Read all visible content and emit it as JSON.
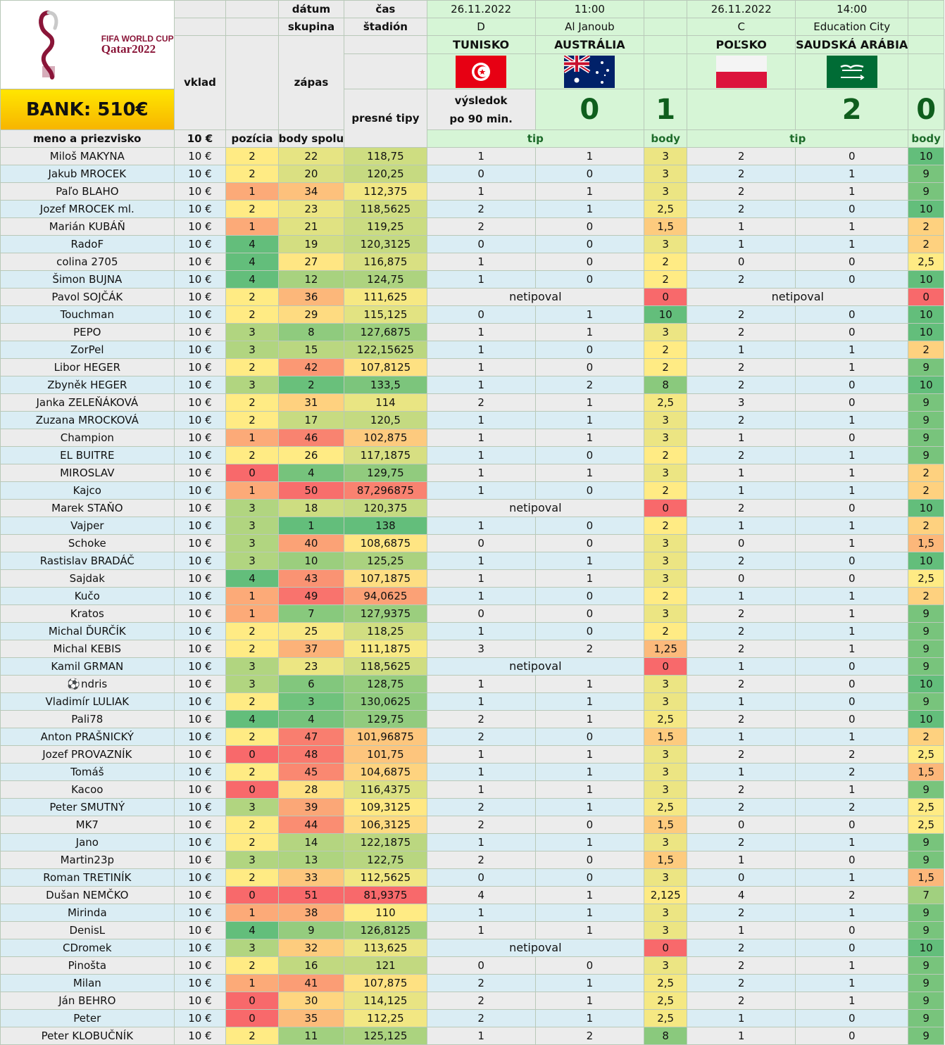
{
  "logo": {
    "line1": "FIFA WORLD CUP",
    "line2": "Qatar2022"
  },
  "bank": "BANK: 510€",
  "headers": {
    "vklad": "vklad",
    "datum": "dátum",
    "skupina": "skupina",
    "cas": "čas",
    "stadion": "štadión",
    "zapas": "zápas",
    "presne": "presné tipy",
    "vysledok_1": "výsledok",
    "vysledok_2": "po 90 min.",
    "meno": "meno a priezvisko",
    "stake": "10 €",
    "pozicia": "pozícia",
    "body_spolu": "body spolu",
    "tip": "tip",
    "body": "body"
  },
  "matches": [
    {
      "date": "26.11.2022",
      "time": "11:00",
      "group": "D",
      "stadium": "Al Janoub",
      "team1": "TUNISKO",
      "team2": "AUSTRÁLIA",
      "flag1": "tunisia-flag",
      "flag2": "australia-flag",
      "score1": "0",
      "score2": "1"
    },
    {
      "date": "26.11.2022",
      "time": "14:00",
      "group": "C",
      "stadium": "Education City",
      "team1": "POĽSKO",
      "team2": "SAUDSKÁ ARÁBIA",
      "flag1": "poland-flag",
      "flag2": "saudi-arabia-flag",
      "score1": "2",
      "score2": "0"
    }
  ],
  "not_tipped": "netipoval",
  "colors": {
    "header_green": "#d6f5d6",
    "row_grey": "#ececec",
    "row_blue": "#daedf4",
    "score_green": "#0f5e1d"
  },
  "rows": [
    {
      "name": "Miloš MAKYNA",
      "vklad": "10 €",
      "presne": "2",
      "poz": "22",
      "spolu": "118,75",
      "m1": [
        "1",
        "1"
      ],
      "b1": "3",
      "m2": [
        "2",
        "0"
      ],
      "b2": "10"
    },
    {
      "name": "Jakub MROCEK",
      "vklad": "10 €",
      "presne": "2",
      "poz": "20",
      "spolu": "120,25",
      "m1": [
        "0",
        "0"
      ],
      "b1": "3",
      "m2": [
        "2",
        "1"
      ],
      "b2": "9"
    },
    {
      "name": "Paľo BLAHO",
      "vklad": "10 €",
      "presne": "1",
      "poz": "34",
      "spolu": "112,375",
      "m1": [
        "1",
        "1"
      ],
      "b1": "3",
      "m2": [
        "2",
        "1"
      ],
      "b2": "9"
    },
    {
      "name": "Jozef MROCEK ml.",
      "vklad": "10 €",
      "presne": "2",
      "poz": "23",
      "spolu": "118,5625",
      "m1": [
        "2",
        "1"
      ],
      "b1": "2,5",
      "m2": [
        "2",
        "0"
      ],
      "b2": "10"
    },
    {
      "name": "Marián KUBÁŇ",
      "vklad": "10 €",
      "presne": "1",
      "poz": "21",
      "spolu": "119,25",
      "m1": [
        "2",
        "0"
      ],
      "b1": "1,5",
      "m2": [
        "1",
        "1"
      ],
      "b2": "2"
    },
    {
      "name": "RadoF",
      "vklad": "10 €",
      "presne": "4",
      "poz": "19",
      "spolu": "120,3125",
      "m1": [
        "0",
        "0"
      ],
      "b1": "3",
      "m2": [
        "1",
        "1"
      ],
      "b2": "2"
    },
    {
      "name": "colina 2705",
      "vklad": "10 €",
      "presne": "4",
      "poz": "27",
      "spolu": "116,875",
      "m1": [
        "1",
        "0"
      ],
      "b1": "2",
      "m2": [
        "0",
        "0"
      ],
      "b2": "2,5"
    },
    {
      "name": "Šimon BUJNA",
      "vklad": "10 €",
      "presne": "4",
      "poz": "12",
      "spolu": "124,75",
      "m1": [
        "1",
        "0"
      ],
      "b1": "2",
      "m2": [
        "2",
        "0"
      ],
      "b2": "10"
    },
    {
      "name": "Pavol SOJČÁK",
      "vklad": "10 €",
      "presne": "2",
      "poz": "36",
      "spolu": "111,625",
      "m1": null,
      "b1": "0",
      "m2": null,
      "b2": "0"
    },
    {
      "name": "Touchman",
      "vklad": "10 €",
      "presne": "2",
      "poz": "29",
      "spolu": "115,125",
      "m1": [
        "0",
        "1"
      ],
      "b1": "10",
      "m2": [
        "2",
        "0"
      ],
      "b2": "10"
    },
    {
      "name": "PEPO",
      "vklad": "10 €",
      "presne": "3",
      "poz": "8",
      "spolu": "127,6875",
      "m1": [
        "1",
        "1"
      ],
      "b1": "3",
      "m2": [
        "2",
        "0"
      ],
      "b2": "10"
    },
    {
      "name": "ZorPel",
      "vklad": "10 €",
      "presne": "3",
      "poz": "15",
      "spolu": "122,15625",
      "m1": [
        "1",
        "0"
      ],
      "b1": "2",
      "m2": [
        "1",
        "1"
      ],
      "b2": "2"
    },
    {
      "name": "Libor HEGER",
      "vklad": "10 €",
      "presne": "2",
      "poz": "42",
      "spolu": "107,8125",
      "m1": [
        "1",
        "0"
      ],
      "b1": "2",
      "m2": [
        "2",
        "1"
      ],
      "b2": "9"
    },
    {
      "name": "Zbyněk HEGER",
      "vklad": "10 €",
      "presne": "3",
      "poz": "2",
      "spolu": "133,5",
      "m1": [
        "1",
        "2"
      ],
      "b1": "8",
      "m2": [
        "2",
        "0"
      ],
      "b2": "10"
    },
    {
      "name": "Janka ZELEŇÁKOVÁ",
      "vklad": "10 €",
      "presne": "2",
      "poz": "31",
      "spolu": "114",
      "m1": [
        "2",
        "1"
      ],
      "b1": "2,5",
      "m2": [
        "3",
        "0"
      ],
      "b2": "9"
    },
    {
      "name": "Zuzana MROCKOVÁ",
      "vklad": "10 €",
      "presne": "2",
      "poz": "17",
      "spolu": "120,5",
      "m1": [
        "1",
        "1"
      ],
      "b1": "3",
      "m2": [
        "2",
        "1"
      ],
      "b2": "9"
    },
    {
      "name": "Champion",
      "vklad": "10 €",
      "presne": "1",
      "poz": "46",
      "spolu": "102,875",
      "m1": [
        "1",
        "1"
      ],
      "b1": "3",
      "m2": [
        "1",
        "0"
      ],
      "b2": "9"
    },
    {
      "name": "EL BUITRE",
      "vklad": "10 €",
      "presne": "2",
      "poz": "26",
      "spolu": "117,1875",
      "m1": [
        "1",
        "0"
      ],
      "b1": "2",
      "m2": [
        "2",
        "1"
      ],
      "b2": "9"
    },
    {
      "name": "MIROSLAV",
      "vklad": "10 €",
      "presne": "0",
      "poz": "4",
      "spolu": "129,75",
      "m1": [
        "1",
        "1"
      ],
      "b1": "3",
      "m2": [
        "1",
        "1"
      ],
      "b2": "2"
    },
    {
      "name": "Kajco",
      "vklad": "10 €",
      "presne": "1",
      "poz": "50",
      "spolu": "87,296875",
      "m1": [
        "1",
        "0"
      ],
      "b1": "2",
      "m2": [
        "1",
        "1"
      ],
      "b2": "2"
    },
    {
      "name": "Marek STAŇO",
      "vklad": "10 €",
      "presne": "3",
      "poz": "18",
      "spolu": "120,375",
      "m1": null,
      "b1": "0",
      "m2": [
        "2",
        "0"
      ],
      "b2": "10"
    },
    {
      "name": "Vajper",
      "vklad": "10 €",
      "presne": "3",
      "poz": "1",
      "spolu": "138",
      "m1": [
        "1",
        "0"
      ],
      "b1": "2",
      "m2": [
        "1",
        "1"
      ],
      "b2": "2"
    },
    {
      "name": "Schoke",
      "vklad": "10 €",
      "presne": "3",
      "poz": "40",
      "spolu": "108,6875",
      "m1": [
        "0",
        "0"
      ],
      "b1": "3",
      "m2": [
        "0",
        "1"
      ],
      "b2": "1,5"
    },
    {
      "name": "Rastislav BRADÁČ",
      "vklad": "10 €",
      "presne": "3",
      "poz": "10",
      "spolu": "125,25",
      "m1": [
        "1",
        "1"
      ],
      "b1": "3",
      "m2": [
        "2",
        "0"
      ],
      "b2": "10"
    },
    {
      "name": "Sajdak",
      "vklad": "10 €",
      "presne": "4",
      "poz": "43",
      "spolu": "107,1875",
      "m1": [
        "1",
        "1"
      ],
      "b1": "3",
      "m2": [
        "0",
        "0"
      ],
      "b2": "2,5"
    },
    {
      "name": "Kučo",
      "vklad": "10 €",
      "presne": "1",
      "poz": "49",
      "spolu": "94,0625",
      "m1": [
        "1",
        "0"
      ],
      "b1": "2",
      "m2": [
        "1",
        "1"
      ],
      "b2": "2"
    },
    {
      "name": "Kratos",
      "vklad": "10 €",
      "presne": "1",
      "poz": "7",
      "spolu": "127,9375",
      "m1": [
        "0",
        "0"
      ],
      "b1": "3",
      "m2": [
        "2",
        "1"
      ],
      "b2": "9"
    },
    {
      "name": "Michal ĎURČÍK",
      "vklad": "10 €",
      "presne": "2",
      "poz": "25",
      "spolu": "118,25",
      "m1": [
        "1",
        "0"
      ],
      "b1": "2",
      "m2": [
        "2",
        "1"
      ],
      "b2": "9"
    },
    {
      "name": "Michal KEBIS",
      "vklad": "10 €",
      "presne": "2",
      "poz": "37",
      "spolu": "111,1875",
      "m1": [
        "3",
        "2"
      ],
      "b1": "1,25",
      "m2": [
        "2",
        "1"
      ],
      "b2": "9"
    },
    {
      "name": "Kamil GRMAN",
      "vklad": "10 €",
      "presne": "3",
      "poz": "23",
      "spolu": "118,5625",
      "m1": null,
      "b1": "0",
      "m2": [
        "1",
        "0"
      ],
      "b2": "9"
    },
    {
      "name": "ndris",
      "vklad": "10 €",
      "presne": "3",
      "poz": "6",
      "spolu": "128,75",
      "m1": [
        "1",
        "1"
      ],
      "b1": "3",
      "m2": [
        "2",
        "0"
      ],
      "b2": "10",
      "icon": "soccer-ball-icon"
    },
    {
      "name": "Vladimír LULIAK",
      "vklad": "10 €",
      "presne": "2",
      "poz": "3",
      "spolu": "130,0625",
      "m1": [
        "1",
        "1"
      ],
      "b1": "3",
      "m2": [
        "1",
        "0"
      ],
      "b2": "9"
    },
    {
      "name": "Pali78",
      "vklad": "10 €",
      "presne": "4",
      "poz": "4",
      "spolu": "129,75",
      "m1": [
        "2",
        "1"
      ],
      "b1": "2,5",
      "m2": [
        "2",
        "0"
      ],
      "b2": "10"
    },
    {
      "name": "Anton PRAŠNICKÝ",
      "vklad": "10 €",
      "presne": "2",
      "poz": "47",
      "spolu": "101,96875",
      "m1": [
        "2",
        "0"
      ],
      "b1": "1,5",
      "m2": [
        "1",
        "1"
      ],
      "b2": "2"
    },
    {
      "name": "Jozef PROVAZNÍK",
      "vklad": "10 €",
      "presne": "0",
      "poz": "48",
      "spolu": "101,75",
      "m1": [
        "1",
        "1"
      ],
      "b1": "3",
      "m2": [
        "2",
        "2"
      ],
      "b2": "2,5"
    },
    {
      "name": "Tomáš",
      "vklad": "10 €",
      "presne": "2",
      "poz": "45",
      "spolu": "104,6875",
      "m1": [
        "1",
        "1"
      ],
      "b1": "3",
      "m2": [
        "1",
        "2"
      ],
      "b2": "1,5"
    },
    {
      "name": "Kacoo",
      "vklad": "10 €",
      "presne": "0",
      "poz": "28",
      "spolu": "116,4375",
      "m1": [
        "1",
        "1"
      ],
      "b1": "3",
      "m2": [
        "2",
        "1"
      ],
      "b2": "9"
    },
    {
      "name": "Peter SMUTNÝ",
      "vklad": "10 €",
      "presne": "3",
      "poz": "39",
      "spolu": "109,3125",
      "m1": [
        "2",
        "1"
      ],
      "b1": "2,5",
      "m2": [
        "2",
        "2"
      ],
      "b2": "2,5"
    },
    {
      "name": "MK7",
      "vklad": "10 €",
      "presne": "2",
      "poz": "44",
      "spolu": "106,3125",
      "m1": [
        "2",
        "0"
      ],
      "b1": "1,5",
      "m2": [
        "0",
        "0"
      ],
      "b2": "2,5"
    },
    {
      "name": "Jano",
      "vklad": "10 €",
      "presne": "2",
      "poz": "14",
      "spolu": "122,1875",
      "m1": [
        "1",
        "1"
      ],
      "b1": "3",
      "m2": [
        "2",
        "1"
      ],
      "b2": "9"
    },
    {
      "name": "Martin23p",
      "vklad": "10 €",
      "presne": "3",
      "poz": "13",
      "spolu": "122,75",
      "m1": [
        "2",
        "0"
      ],
      "b1": "1,5",
      "m2": [
        "1",
        "0"
      ],
      "b2": "9"
    },
    {
      "name": "Roman TRETINÍK",
      "vklad": "10 €",
      "presne": "2",
      "poz": "33",
      "spolu": "112,5625",
      "m1": [
        "0",
        "0"
      ],
      "b1": "3",
      "m2": [
        "0",
        "1"
      ],
      "b2": "1,5"
    },
    {
      "name": "Dušan NEMČKO",
      "vklad": "10 €",
      "presne": "0",
      "poz": "51",
      "spolu": "81,9375",
      "m1": [
        "4",
        "1"
      ],
      "b1": "2,125",
      "m2": [
        "4",
        "2"
      ],
      "b2": "7"
    },
    {
      "name": "Mirinda",
      "vklad": "10 €",
      "presne": "1",
      "poz": "38",
      "spolu": "110",
      "m1": [
        "1",
        "1"
      ],
      "b1": "3",
      "m2": [
        "2",
        "1"
      ],
      "b2": "9"
    },
    {
      "name": "DenisL",
      "vklad": "10 €",
      "presne": "4",
      "poz": "9",
      "spolu": "126,8125",
      "m1": [
        "1",
        "1"
      ],
      "b1": "3",
      "m2": [
        "1",
        "0"
      ],
      "b2": "9"
    },
    {
      "name": "CDromek",
      "vklad": "10 €",
      "presne": "3",
      "poz": "32",
      "spolu": "113,625",
      "m1": null,
      "b1": "0",
      "m2": [
        "2",
        "0"
      ],
      "b2": "10"
    },
    {
      "name": "Pinošta",
      "vklad": "10 €",
      "presne": "2",
      "poz": "16",
      "spolu": "121",
      "m1": [
        "0",
        "0"
      ],
      "b1": "3",
      "m2": [
        "2",
        "1"
      ],
      "b2": "9"
    },
    {
      "name": "Milan",
      "vklad": "10 €",
      "presne": "1",
      "poz": "41",
      "spolu": "107,875",
      "m1": [
        "2",
        "1"
      ],
      "b1": "2,5",
      "m2": [
        "2",
        "1"
      ],
      "b2": "9"
    },
    {
      "name": "Ján BEHRO",
      "vklad": "10 €",
      "presne": "0",
      "poz": "30",
      "spolu": "114,125",
      "m1": [
        "2",
        "1"
      ],
      "b1": "2,5",
      "m2": [
        "2",
        "1"
      ],
      "b2": "9"
    },
    {
      "name": "Peter",
      "vklad": "10 €",
      "presne": "0",
      "poz": "35",
      "spolu": "112,25",
      "m1": [
        "2",
        "1"
      ],
      "b1": "2,5",
      "m2": [
        "1",
        "0"
      ],
      "b2": "9"
    },
    {
      "name": "Peter KLOBUČNÍK",
      "vklad": "10 €",
      "presne": "2",
      "poz": "11",
      "spolu": "125,125",
      "m1": [
        "1",
        "2"
      ],
      "b1": "8",
      "m2": [
        "1",
        "0"
      ],
      "b2": "9"
    }
  ]
}
